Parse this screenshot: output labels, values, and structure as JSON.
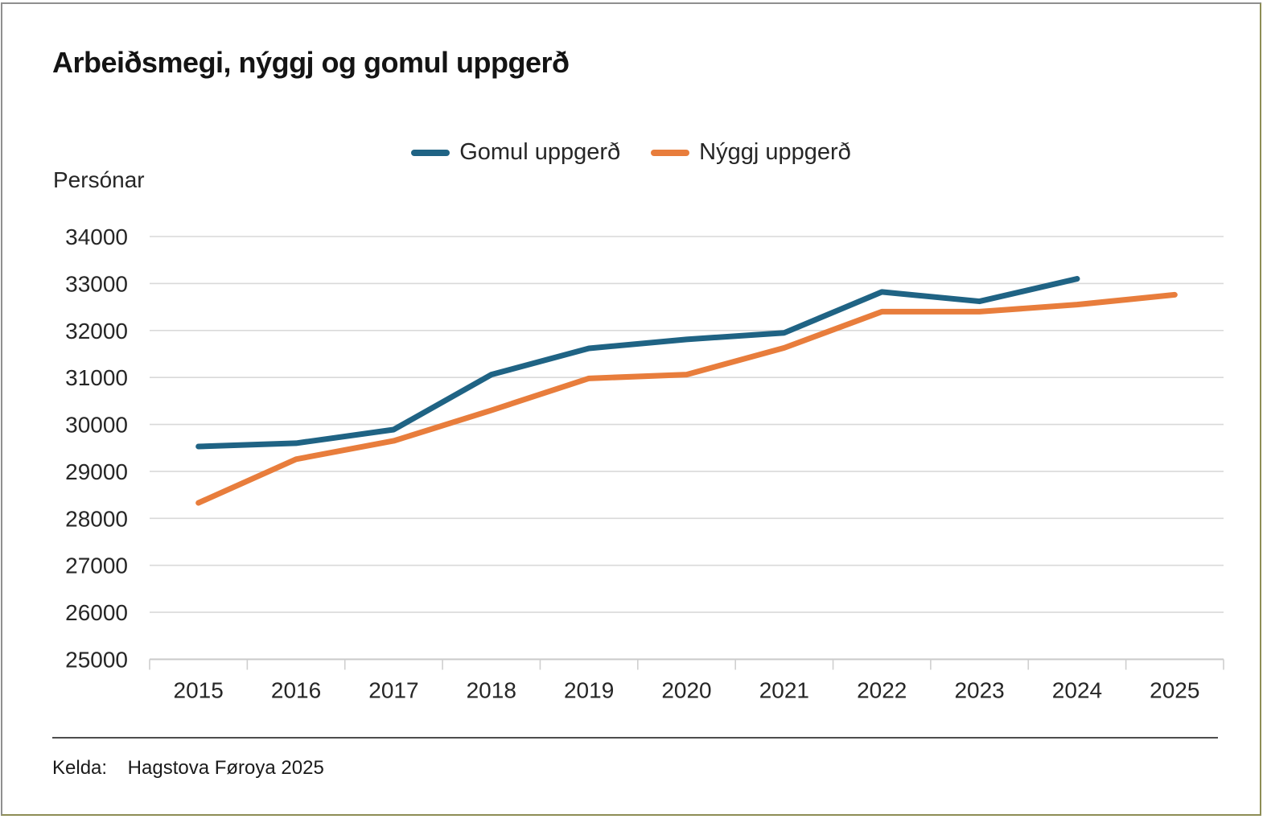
{
  "page": {
    "title": "Arbeiðsmegi, nýggj og gomul uppgerð",
    "footer": {
      "kelda_label": "Kelda:",
      "source": "Hagstova Føroya 2025"
    }
  },
  "chart_data": {
    "type": "line",
    "title": "Arbeiðsmegi, nýggj og gomul uppgerð",
    "ylabel": "Persónar",
    "xlabel": "",
    "categories": [
      "2015",
      "2016",
      "2017",
      "2018",
      "2019",
      "2020",
      "2021",
      "2022",
      "2023",
      "2024",
      "2025"
    ],
    "series": [
      {
        "name": "Gomul uppgerð",
        "color": "#1f6384",
        "values": [
          29530,
          29600,
          29890,
          31060,
          31620,
          31810,
          31950,
          32820,
          32620,
          33100,
          null
        ]
      },
      {
        "name": "Nýggj uppgerð",
        "color": "#e87d3c",
        "values": [
          28330,
          29260,
          29650,
          30300,
          30980,
          31060,
          31630,
          32400,
          32400,
          32550,
          32760
        ]
      }
    ],
    "ylim": [
      25000,
      34000
    ],
    "ytick_step": 1000,
    "yticks": [
      25000,
      26000,
      27000,
      28000,
      29000,
      30000,
      31000,
      32000,
      33000,
      34000
    ],
    "grid": true,
    "legend_position": "top-center"
  },
  "colors": {
    "gridline": "#d9d9d9",
    "axis_line": "#c9c9c9",
    "tick": "#cfcfcf",
    "text": "#262626",
    "border_gray": "#8f8f8f",
    "border_olive": "#8d8d55"
  }
}
